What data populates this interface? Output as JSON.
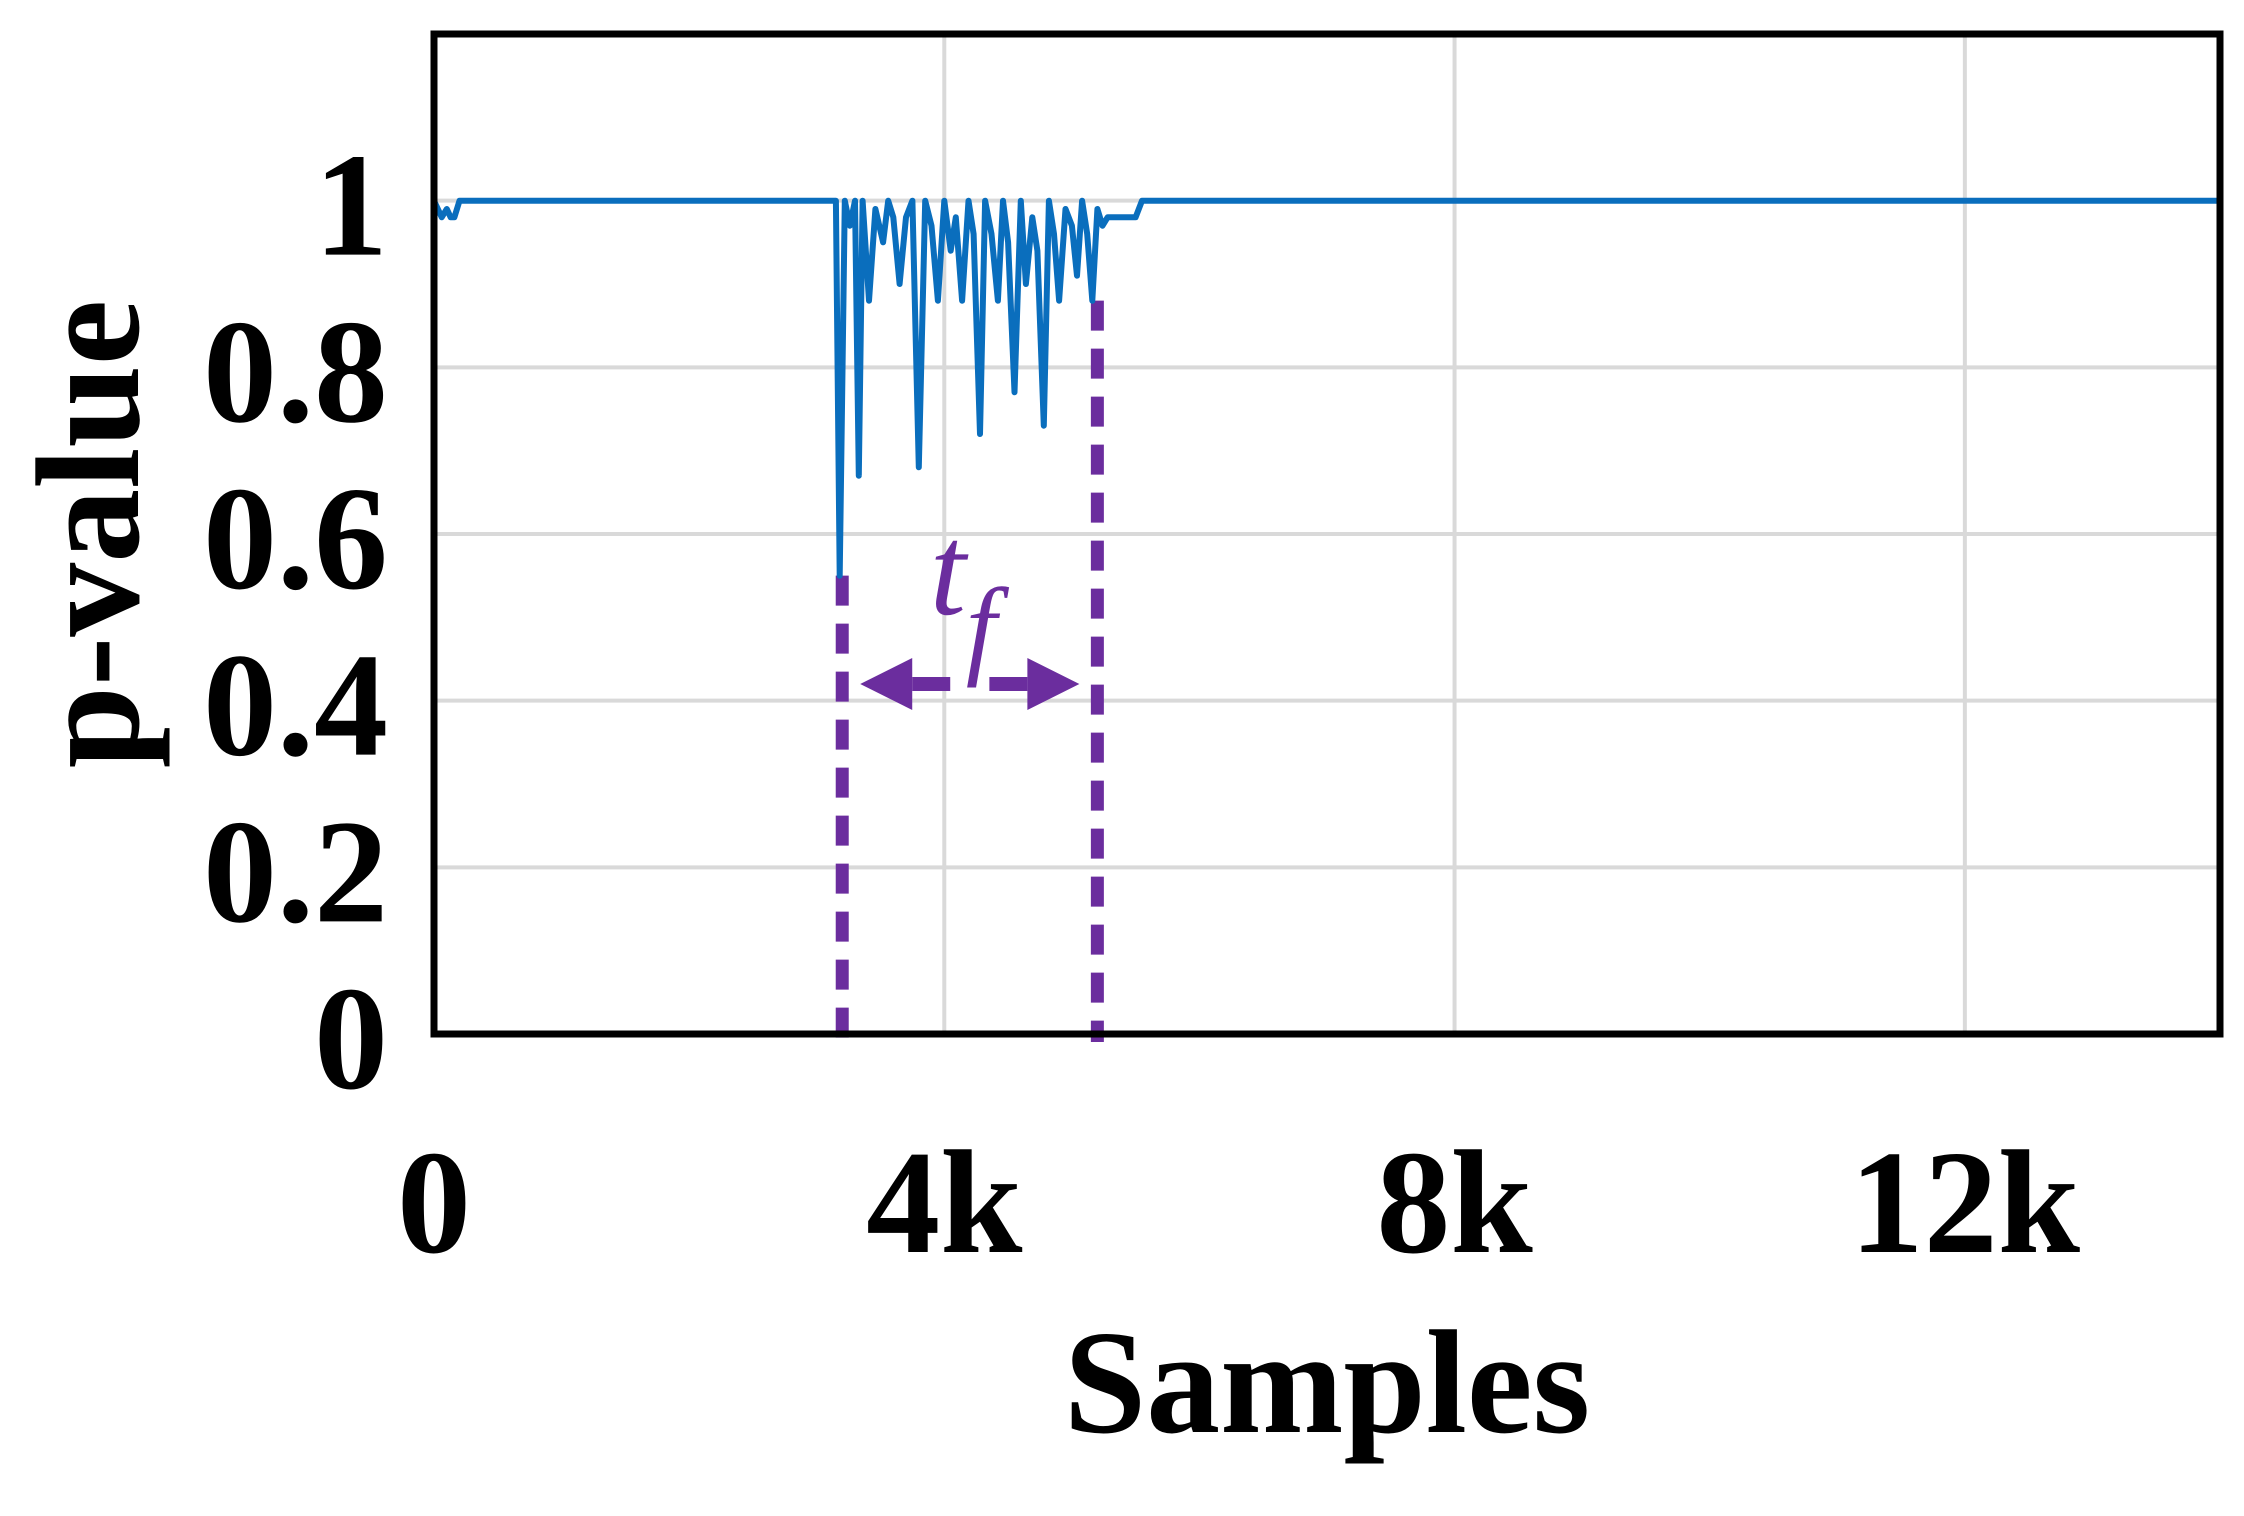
{
  "chart_data": {
    "type": "line",
    "title": "",
    "xlabel": "Samples",
    "ylabel": "p-value",
    "xlim": [
      0,
      14000
    ],
    "ylim": [
      0,
      1.2
    ],
    "grid": true,
    "x_ticks": [
      {
        "value": 0,
        "label": "0"
      },
      {
        "value": 4000,
        "label": "4k"
      },
      {
        "value": 8000,
        "label": "8k"
      },
      {
        "value": 12000,
        "label": "12k"
      }
    ],
    "y_ticks": [
      {
        "value": 0,
        "label": "0"
      },
      {
        "value": 0.2,
        "label": "0.2"
      },
      {
        "value": 0.4,
        "label": "0.4"
      },
      {
        "value": 0.6,
        "label": "0.6"
      },
      {
        "value": 0.8,
        "label": "0.8"
      },
      {
        "value": 1.0,
        "label": "1"
      }
    ],
    "series": [
      {
        "color": "#0a6ebd",
        "x": [
          0,
          60,
          100,
          130,
          160,
          200,
          3150,
          3180,
          3220,
          3260,
          3300,
          3330,
          3360,
          3410,
          3460,
          3520,
          3560,
          3600,
          3650,
          3700,
          3750,
          3800,
          3850,
          3900,
          3950,
          4000,
          4050,
          4090,
          4140,
          4190,
          4230,
          4280,
          4320,
          4370,
          4420,
          4460,
          4500,
          4550,
          4600,
          4640,
          4690,
          4730,
          4780,
          4820,
          4860,
          4900,
          4950,
          5000,
          5040,
          5080,
          5120,
          5160,
          5200,
          5240,
          5280,
          5330,
          5400,
          5500,
          5550,
          14000
        ],
        "y": [
          1,
          0.98,
          0.99,
          0.98,
          0.98,
          1,
          1,
          0.55,
          1,
          0.97,
          1,
          0.67,
          1,
          0.88,
          0.99,
          0.95,
          1,
          0.98,
          0.9,
          0.98,
          1,
          0.68,
          1,
          0.97,
          0.88,
          1,
          0.94,
          0.98,
          0.88,
          1,
          0.96,
          0.72,
          1,
          0.96,
          0.88,
          1,
          0.95,
          0.77,
          1,
          0.9,
          0.98,
          0.94,
          0.73,
          1,
          0.96,
          0.88,
          0.99,
          0.97,
          0.91,
          1,
          0.96,
          0.88,
          0.99,
          0.97,
          0.98,
          0.98,
          0.98,
          0.98,
          1,
          1
        ]
      }
    ],
    "annotations": [
      {
        "type": "vline",
        "x": 3200,
        "y_top": 0.55,
        "color": "#6b2d9e",
        "style": "dashed"
      },
      {
        "type": "vline",
        "x": 5200,
        "y_top": 0.88,
        "color": "#6b2d9e",
        "style": "dashed"
      },
      {
        "type": "double-arrow",
        "x_start": 3200,
        "x_end": 5200,
        "y": 0.42,
        "color": "#6b2d9e",
        "label": "t",
        "label_sub": "f"
      }
    ]
  }
}
